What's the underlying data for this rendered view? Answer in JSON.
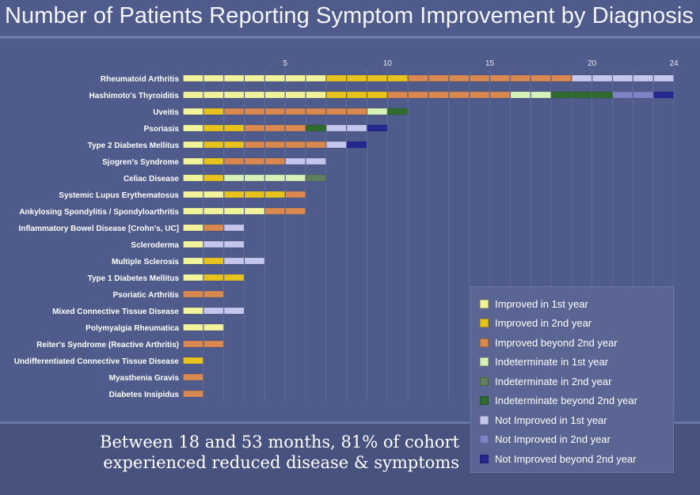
{
  "title": "Number of Patients Reporting Symptom Improvement by Diagnosis",
  "caption": {
    "line1": "Between 18 and 53 months, 81% of cohort",
    "line2": "experienced reduced disease & symptoms"
  },
  "legend": [
    {
      "key": "imp1",
      "label": "Improved in 1st year",
      "color": "#f2f39a"
    },
    {
      "key": "imp2",
      "label": "Improved in 2nd year",
      "color": "#e8c31e"
    },
    {
      "key": "impB",
      "label": "Improved beyond 2nd year",
      "color": "#d9894f"
    },
    {
      "key": "ind1",
      "label": "Indeterminate in 1st year",
      "color": "#d7f2b8"
    },
    {
      "key": "ind2",
      "label": "Indeterminate in 2nd year",
      "color": "#5f7f5e"
    },
    {
      "key": "indB",
      "label": "Indeterminate beyond 2nd year",
      "color": "#2f6a2e"
    },
    {
      "key": "not1",
      "label": "Not Improved in 1st year",
      "color": "#c4c6ee"
    },
    {
      "key": "not2",
      "label": "Not Improved in 2nd year",
      "color": "#7d83c6"
    },
    {
      "key": "notB",
      "label": "Not Improved beyond 2nd year",
      "color": "#26278f"
    }
  ],
  "chart_data": {
    "type": "bar",
    "orientation": "horizontal",
    "stacked": true,
    "xlim": [
      0,
      24
    ],
    "xticks": [
      5,
      10,
      15,
      20,
      24
    ],
    "grid": true,
    "legend_position": "bottom-right",
    "categories": [
      "Rheumatoid Arthritis",
      "Hashimoto's Thyroiditis",
      "Uveitis",
      "Psoriasis",
      "Type 2 Diabetes Mellitus",
      "Sjogren's Syndrome",
      "Celiac Disease",
      "Systemic Lupus Erythematosus",
      "Ankylosing Spondylitis / Spondyloarthritis",
      "Inflammatory Bowel Disease [Crohn's, UC]",
      "Scleroderma",
      "Multiple Sclerosis",
      "Type 1 Diabetes Mellitus",
      "Psoriatic Arthritis",
      "Mixed Connective Tissue Disease",
      "Polymyalgia Rheumatica",
      "Reiter's Syndrome (Reactive Arthritis)",
      "Undifferentiated Connective Tissue Disease",
      "Myasthenia Gravis",
      "Diabetes Insipidus"
    ],
    "series": [
      {
        "name": "Improved in 1st year",
        "values": [
          7,
          7,
          1,
          1,
          1,
          1,
          1,
          2,
          4,
          1,
          1,
          1,
          1,
          0,
          1,
          2,
          0,
          0,
          0,
          0
        ]
      },
      {
        "name": "Improved in 2nd year",
        "values": [
          4,
          3,
          1,
          2,
          2,
          1,
          1,
          3,
          0,
          0,
          0,
          1,
          2,
          0,
          0,
          0,
          0,
          1,
          0,
          0
        ]
      },
      {
        "name": "Improved beyond 2nd year",
        "values": [
          8,
          6,
          7,
          3,
          4,
          3,
          0,
          1,
          2,
          1,
          0,
          0,
          0,
          2,
          0,
          0,
          2,
          0,
          1,
          1
        ]
      },
      {
        "name": "Indeterminate in 1st year",
        "values": [
          0,
          2,
          1,
          0,
          0,
          0,
          4,
          0,
          0,
          0,
          0,
          0,
          0,
          0,
          0,
          0,
          0,
          0,
          0,
          0
        ]
      },
      {
        "name": "Indeterminate in 2nd year",
        "values": [
          0,
          0,
          0,
          0,
          0,
          0,
          1,
          0,
          0,
          0,
          0,
          0,
          0,
          0,
          0,
          0,
          0,
          0,
          0,
          0
        ]
      },
      {
        "name": "Indeterminate beyond 2nd year",
        "values": [
          0,
          3,
          1,
          1,
          0,
          0,
          0,
          0,
          0,
          0,
          0,
          0,
          0,
          0,
          0,
          0,
          0,
          0,
          0,
          0
        ]
      },
      {
        "name": "Not Improved in 1st year",
        "values": [
          5,
          0,
          0,
          2,
          1,
          2,
          0,
          0,
          0,
          1,
          2,
          2,
          0,
          0,
          2,
          0,
          0,
          0,
          0,
          0
        ]
      },
      {
        "name": "Not Improved in 2nd year",
        "values": [
          0,
          2,
          0,
          0,
          0,
          0,
          0,
          0,
          0,
          0,
          0,
          0,
          0,
          0,
          0,
          0,
          0,
          0,
          0,
          0
        ]
      },
      {
        "name": "Not Improved beyond 2nd year",
        "values": [
          0,
          1,
          0,
          1,
          1,
          0,
          0,
          0,
          0,
          0,
          0,
          0,
          0,
          0,
          0,
          0,
          0,
          0,
          0,
          0
        ]
      }
    ]
  }
}
